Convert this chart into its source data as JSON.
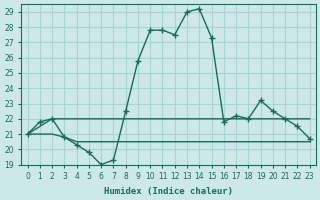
{
  "xlabel": "Humidex (Indice chaleur)",
  "xlim": [
    -0.5,
    23.5
  ],
  "ylim": [
    19,
    29.5
  ],
  "yticks": [
    19,
    20,
    21,
    22,
    23,
    24,
    25,
    26,
    27,
    28,
    29
  ],
  "xticks": [
    0,
    1,
    2,
    3,
    4,
    5,
    6,
    7,
    8,
    9,
    10,
    11,
    12,
    13,
    14,
    15,
    16,
    17,
    18,
    19,
    20,
    21,
    22,
    23
  ],
  "bg_color": "#cce8e8",
  "grid_color": "#aad4d4",
  "line_color": "#1a6b5a",
  "line1_x": [
    0,
    1,
    2,
    3,
    4,
    5,
    6,
    7,
    8,
    9,
    10,
    11,
    12,
    13,
    14,
    15,
    16,
    17,
    18,
    19,
    20,
    21,
    22,
    23
  ],
  "line1_y": [
    21.0,
    21.8,
    22.0,
    20.8,
    20.3,
    19.8,
    19.0,
    19.3,
    22.5,
    25.8,
    27.8,
    27.8,
    27.5,
    29.0,
    29.2,
    27.3,
    21.8,
    22.2,
    22.0,
    23.2,
    22.5,
    22.0,
    21.5,
    20.7
  ],
  "line2_x": [
    0,
    1,
    2,
    3,
    4,
    5,
    6,
    7,
    8,
    9,
    10,
    11,
    12,
    13,
    14,
    15,
    16,
    17,
    18,
    19,
    20,
    21,
    22,
    23
  ],
  "line2_y": [
    21.0,
    21.5,
    22.0,
    22.0,
    22.0,
    22.0,
    22.0,
    22.0,
    22.0,
    22.0,
    22.0,
    22.0,
    22.0,
    22.0,
    22.0,
    22.0,
    22.0,
    22.0,
    22.0,
    22.0,
    22.0,
    22.0,
    22.0,
    22.0
  ],
  "line3_x": [
    0,
    1,
    2,
    3,
    4,
    5,
    6,
    7,
    8,
    9,
    10,
    11,
    12,
    13,
    14,
    15,
    16,
    17,
    18,
    19,
    20,
    21,
    22,
    23
  ],
  "line3_y": [
    21.0,
    21.0,
    21.0,
    20.8,
    20.5,
    20.5,
    20.5,
    20.5,
    20.5,
    20.5,
    20.5,
    20.5,
    20.5,
    20.5,
    20.5,
    20.5,
    20.5,
    20.5,
    20.5,
    20.5,
    20.5,
    20.5,
    20.5,
    20.5
  ]
}
